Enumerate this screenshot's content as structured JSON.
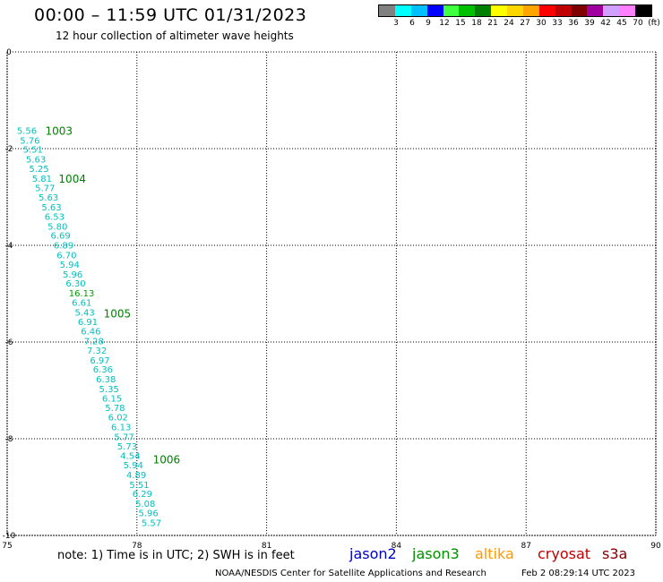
{
  "header": {
    "title": "00:00 – 11:59 UTC 01/31/2023",
    "subtitle": "12 hour collection of altimeter wave heights"
  },
  "colorbar": {
    "labels": [
      "3",
      "6",
      "9",
      "12",
      "15",
      "18",
      "21",
      "24",
      "27",
      "30",
      "33",
      "36",
      "39",
      "42",
      "45",
      "70",
      "(ft)"
    ],
    "colors": [
      "#808080",
      "#00ffff",
      "#00bfff",
      "#0000ff",
      "#40ff40",
      "#00c000",
      "#008000",
      "#ffff00",
      "#ffd700",
      "#ffa500",
      "#ff0000",
      "#c00000",
      "#800000",
      "#a000a0",
      "#d0a0ff",
      "#ff80ff",
      "#000000"
    ]
  },
  "axes": {
    "x_ticks": [
      75,
      78,
      81,
      84,
      87,
      90
    ],
    "y_ticks": [
      0,
      -2,
      -4,
      -6,
      -8,
      -10
    ],
    "xlim": [
      75,
      90
    ],
    "ylim": [
      -10,
      0
    ]
  },
  "track_color": "#00c0c0",
  "highlight_color": "#00a000",
  "heights": [
    {
      "lon": 75.1,
      "lat": -1.62,
      "v": "5.56",
      "hl": false
    },
    {
      "lon": 75.17,
      "lat": -1.82,
      "v": "5.76",
      "hl": false
    },
    {
      "lon": 75.24,
      "lat": -2.01,
      "v": "5.51",
      "hl": false
    },
    {
      "lon": 75.31,
      "lat": -2.21,
      "v": "5.63",
      "hl": false
    },
    {
      "lon": 75.38,
      "lat": -2.41,
      "v": "5.25",
      "hl": false
    },
    {
      "lon": 75.45,
      "lat": -2.61,
      "v": "5.81",
      "hl": false
    },
    {
      "lon": 75.52,
      "lat": -2.81,
      "v": "5.77",
      "hl": false
    },
    {
      "lon": 75.6,
      "lat": -3.0,
      "v": "5.63",
      "hl": false
    },
    {
      "lon": 75.67,
      "lat": -3.2,
      "v": "5.63",
      "hl": false
    },
    {
      "lon": 75.74,
      "lat": -3.4,
      "v": "6.53",
      "hl": false
    },
    {
      "lon": 75.81,
      "lat": -3.6,
      "v": "5.80",
      "hl": false
    },
    {
      "lon": 75.88,
      "lat": -3.79,
      "v": "6.69",
      "hl": false
    },
    {
      "lon": 75.95,
      "lat": -3.99,
      "v": "6.89",
      "hl": false
    },
    {
      "lon": 76.02,
      "lat": -4.19,
      "v": "6.70",
      "hl": false
    },
    {
      "lon": 76.09,
      "lat": -4.39,
      "v": "5.94",
      "hl": false
    },
    {
      "lon": 76.16,
      "lat": -4.59,
      "v": "5.96",
      "hl": false
    },
    {
      "lon": 76.23,
      "lat": -4.78,
      "v": "6.30",
      "hl": false
    },
    {
      "lon": 76.3,
      "lat": -4.98,
      "v": "16.13",
      "hl": true
    },
    {
      "lon": 76.37,
      "lat": -5.18,
      "v": "6.61",
      "hl": false
    },
    {
      "lon": 76.44,
      "lat": -5.38,
      "v": "5.43",
      "hl": false
    },
    {
      "lon": 76.51,
      "lat": -5.57,
      "v": "6.91",
      "hl": false
    },
    {
      "lon": 76.58,
      "lat": -5.77,
      "v": "6.46",
      "hl": false
    },
    {
      "lon": 76.65,
      "lat": -5.97,
      "v": "7.28",
      "hl": false
    },
    {
      "lon": 76.72,
      "lat": -6.17,
      "v": "7.32",
      "hl": false
    },
    {
      "lon": 76.79,
      "lat": -6.37,
      "v": "6.97",
      "hl": false
    },
    {
      "lon": 76.86,
      "lat": -6.56,
      "v": "6.36",
      "hl": false
    },
    {
      "lon": 76.93,
      "lat": -6.76,
      "v": "6.38",
      "hl": false
    },
    {
      "lon": 77.0,
      "lat": -6.96,
      "v": "5.35",
      "hl": false
    },
    {
      "lon": 77.07,
      "lat": -7.16,
      "v": "6.15",
      "hl": false
    },
    {
      "lon": 77.14,
      "lat": -7.35,
      "v": "5.78",
      "hl": false
    },
    {
      "lon": 77.21,
      "lat": -7.55,
      "v": "6.02",
      "hl": false
    },
    {
      "lon": 77.28,
      "lat": -7.75,
      "v": "6.13",
      "hl": false
    },
    {
      "lon": 77.35,
      "lat": -7.95,
      "v": "5.77",
      "hl": false
    },
    {
      "lon": 77.42,
      "lat": -8.15,
      "v": "5.73",
      "hl": false
    },
    {
      "lon": 77.49,
      "lat": -8.34,
      "v": "4.54",
      "hl": false
    },
    {
      "lon": 77.56,
      "lat": -8.54,
      "v": "5.94",
      "hl": false
    },
    {
      "lon": 77.63,
      "lat": -8.74,
      "v": "4.89",
      "hl": false
    },
    {
      "lon": 77.7,
      "lat": -8.94,
      "v": "5.51",
      "hl": false
    },
    {
      "lon": 77.77,
      "lat": -9.13,
      "v": "6.29",
      "hl": false
    },
    {
      "lon": 77.84,
      "lat": -9.33,
      "v": "5.08",
      "hl": false
    },
    {
      "lon": 77.91,
      "lat": -9.53,
      "v": "5.96",
      "hl": false
    },
    {
      "lon": 77.98,
      "lat": -9.73,
      "v": "5.57",
      "hl": false
    }
  ],
  "time_marks": [
    {
      "lon": 75.88,
      "lat": -1.62,
      "label": "1003"
    },
    {
      "lon": 76.19,
      "lat": -2.61,
      "label": "1004"
    },
    {
      "lon": 77.23,
      "lat": -5.4,
      "label": "1005"
    },
    {
      "lon": 78.37,
      "lat": -8.42,
      "label": "1006"
    }
  ],
  "footer": {
    "note": "note:  1) Time is in UTC;  2) SWH is in feet",
    "satellites": [
      {
        "name": "jason2",
        "color": "#0000c0"
      },
      {
        "name": "jason3",
        "color": "#009000"
      },
      {
        "name": "altika",
        "color": "#ff9900"
      },
      {
        "name": "cryosat",
        "color": "#c00000"
      },
      {
        "name": "s3a",
        "color": "#800000"
      }
    ],
    "credit": "NOAA/NESDIS Center for Satellite Applications and Research",
    "timestamp": "Feb  2 08:29:14 UTC 2023"
  }
}
